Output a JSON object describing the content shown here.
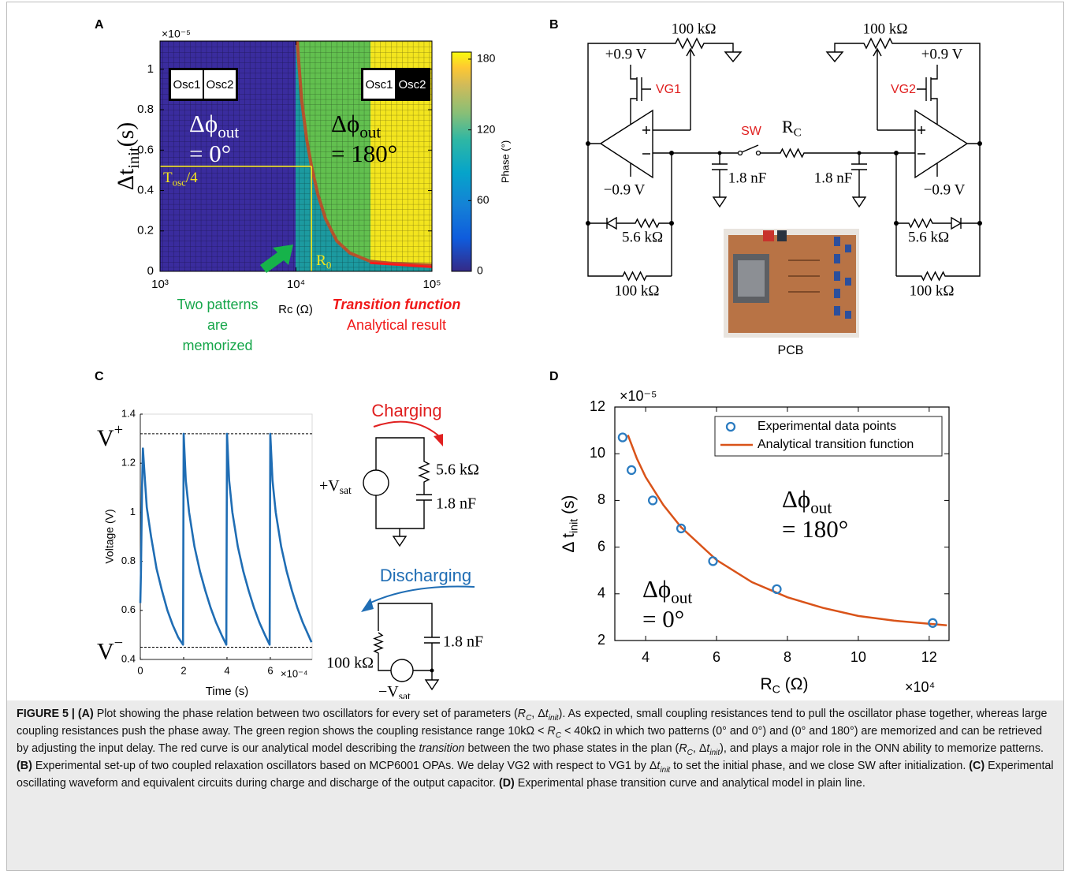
{
  "panel_labels": [
    "A",
    "B",
    "C",
    "D"
  ],
  "chart_data": [
    {
      "type": "heatmap",
      "x_label": "Rc (Ω)",
      "y_label": {
        "main": "Δt",
        "sub": "init",
        "tail": "(s)"
      },
      "y_multiplier": "×10⁻⁵",
      "xscale": "log",
      "xlim": [
        1000,
        100000
      ],
      "xticks": [
        {
          "value": 1000,
          "label": "10³"
        },
        {
          "value": 10000,
          "label": "10⁴"
        },
        {
          "value": 100000,
          "label": "10⁵"
        }
      ],
      "ylim": [
        0,
        1.14
      ],
      "yticks": [
        0,
        0.2,
        0.4,
        0.6,
        0.8,
        1
      ],
      "clim": [
        0,
        186
      ],
      "cticks": [
        0,
        60,
        120,
        180
      ],
      "colorbar_label": "Phase (°)",
      "x": [
        10200,
        11000,
        12000,
        13000,
        14500,
        16500,
        20000,
        25000,
        35000,
        50000,
        100000
      ],
      "series": [
        {
          "color": "#b4532c",
          "values": [
            1.14,
            0.85,
            0.65,
            0.52,
            0.38,
            0.26,
            0.15,
            0.09,
            0.05,
            0.04,
            0.03
          ]
        }
      ],
      "osc_left": [
        "Osc1",
        "Osc2"
      ],
      "osc_right": [
        "Osc1",
        "Osc2"
      ],
      "phase_left": {
        "main": "Δϕ",
        "sub": "out",
        "line2": "= 0°"
      },
      "phase_right": {
        "main": "Δϕ",
        "sub": "out",
        "line2": "= 180°"
      },
      "t_osc": {
        "main": "T",
        "sub": "osc",
        "tail": "/4",
        "y": 0.52
      },
      "r0": {
        "main": "R",
        "sub": "0",
        "x": 13000
      },
      "memorized": [
        "Two patterns",
        "are",
        "memorized"
      ],
      "transition": [
        "Transition function",
        "Analytical result"
      ]
    },
    {
      "type": "line",
      "x_label": "Time (s)",
      "y_label": "Voltage (V)",
      "x_multiplier": "×10⁻⁴",
      "xlim": [
        0,
        7.93
      ],
      "xticks": [
        0,
        2,
        4,
        6
      ],
      "ylim": [
        0.4,
        1.4
      ],
      "yticks": [
        0.4,
        0.6,
        0.8,
        1,
        1.2,
        1.4
      ],
      "x": [
        0,
        0.03,
        0.08,
        0.12,
        0.2,
        0.3,
        0.5,
        0.75,
        1.0,
        1.25,
        1.5,
        1.75,
        1.97,
        2.0,
        2.1,
        2.25,
        2.5,
        2.75,
        3.0,
        3.25,
        3.5,
        3.75,
        3.97,
        4.0,
        4.1,
        4.25,
        4.5,
        4.75,
        5.0,
        5.25,
        5.5,
        5.75,
        5.97,
        6.0,
        6.1,
        6.25,
        6.5,
        6.75,
        7.0,
        7.25,
        7.5,
        7.75,
        7.9
      ],
      "series": [
        {
          "color": "#1f6db4",
          "values": [
            0.63,
            0.75,
            1.1,
            1.26,
            1.15,
            1.02,
            0.9,
            0.77,
            0.68,
            0.6,
            0.54,
            0.49,
            0.46,
            1.32,
            1.13,
            1.0,
            0.86,
            0.76,
            0.68,
            0.61,
            0.55,
            0.5,
            0.46,
            1.32,
            1.13,
            1.0,
            0.86,
            0.76,
            0.68,
            0.61,
            0.55,
            0.5,
            0.46,
            1.32,
            1.13,
            1.0,
            0.86,
            0.76,
            0.68,
            0.61,
            0.55,
            0.5,
            0.47
          ]
        }
      ],
      "hlines": [
        {
          "main": "V",
          "sup": "+",
          "y": 1.32
        },
        {
          "main": "V",
          "sup": "−",
          "y": 0.45
        }
      ],
      "charging": {
        "title": "Charging",
        "source": {
          "main": "+V",
          "sub": "sat"
        },
        "r": "5.6 kΩ",
        "c": "1.8 nF"
      },
      "discharging": {
        "title": "Discharging",
        "source": {
          "main": "−V",
          "sub": "sat"
        },
        "r": "100 kΩ",
        "c": "1.8 nF"
      }
    },
    {
      "type": "scatter",
      "x_label": {
        "main": "R",
        "sub": "C",
        "tail": " (Ω)"
      },
      "y_label": {
        "main": "Δ t",
        "sub": "init",
        "tail": " (s)"
      },
      "x_multiplier": "×10⁴",
      "y_multiplier": "×10⁻⁵",
      "xlim": [
        3.13,
        12.56
      ],
      "xticks": [
        4,
        6,
        8,
        10,
        12
      ],
      "ylim": [
        2,
        12
      ],
      "yticks": [
        2,
        4,
        6,
        8,
        10,
        12
      ],
      "legend": "upper right",
      "series": [
        {
          "name": "Experimental data points",
          "type": "scatter",
          "color": "#2a7bc0",
          "x": [
            3.35,
            3.6,
            4.2,
            5.0,
            5.9,
            7.7,
            12.1
          ],
          "values": [
            10.7,
            9.3,
            8.0,
            6.8,
            5.4,
            4.2,
            2.75
          ]
        },
        {
          "name": "Analytical transition function",
          "type": "line",
          "color": "#d95319",
          "x": [
            3.5,
            3.75,
            4,
            4.5,
            5,
            6,
            7,
            8,
            9,
            10,
            11,
            12.5
          ],
          "values": [
            10.8,
            9.8,
            9.0,
            7.8,
            6.85,
            5.45,
            4.5,
            3.85,
            3.4,
            3.05,
            2.85,
            2.65
          ]
        }
      ],
      "annotations": [
        {
          "main": "Δϕ",
          "sub": "out",
          "line2": "= 180°"
        },
        {
          "main": "Δϕ",
          "sub": "out",
          "line2": "= 0°"
        }
      ]
    }
  ],
  "circuit": {
    "pot_left": "100 kΩ",
    "pot_right": "100 kΩ",
    "vdd_left": "+0.9 V",
    "vdd_right": "+0.9 V",
    "gate_left": "VG1",
    "gate_right": "VG2",
    "switch": "SW",
    "rc": {
      "main": "R",
      "sub": "C"
    },
    "cap_left": "1.8 nF",
    "cap_right": "1.8 nF",
    "vss_left": "−0.9 V",
    "vss_right": "−0.9 V",
    "diode_r_left": "5.6 kΩ",
    "diode_r_right": "5.6 kΩ",
    "fb_left": "100 kΩ",
    "fb_right": "100 kΩ",
    "photo": "PCB"
  },
  "caption": [
    {
      "text": "FIGURE 5 | (A)",
      "style": "bold"
    },
    {
      "text": " Plot showing the phase relation between two oscillators for every set of parameters ("
    },
    {
      "text": "R",
      "style": "italic"
    },
    {
      "text": "C",
      "style": "italic-sub"
    },
    {
      "text": ", Δ"
    },
    {
      "text": "t",
      "style": "italic"
    },
    {
      "text": "init",
      "style": "italic-sub"
    },
    {
      "text": "). As expected, small coupling resistances tend to pull the oscillator phase together, whereas large coupling resistances push the phase away. The green region shows the coupling resistance range 10kΩ < "
    },
    {
      "text": "R",
      "style": "italic"
    },
    {
      "text": "C",
      "style": "italic-sub"
    },
    {
      "text": " < 40kΩ in which two patterns (0° and 0°) and (0° and 180°) are memorized and can be retrieved by adjusting the input delay. The red curve is our analytical model describing the "
    },
    {
      "text": "transition",
      "style": "italic"
    },
    {
      "text": " between the two phase states in the plan ("
    },
    {
      "text": "R",
      "style": "italic"
    },
    {
      "text": "C",
      "style": "italic-sub"
    },
    {
      "text": ", Δ"
    },
    {
      "text": "t",
      "style": "italic"
    },
    {
      "text": "init",
      "style": "italic-sub"
    },
    {
      "text": "), and plays a major role in the ONN ability to memorize patterns. "
    },
    {
      "text": "(B)",
      "style": "bold"
    },
    {
      "text": " Experimental set-up of two coupled relaxation oscillators based on MCP6001 OPAs. We delay VG2 with respect to VG1 by Δ"
    },
    {
      "text": "t",
      "style": "italic"
    },
    {
      "text": "init",
      "style": "italic-sub"
    },
    {
      "text": " to set the initial phase, and we close SW after initialization. "
    },
    {
      "text": "(C)",
      "style": "bold"
    },
    {
      "text": " Experimental oscillating waveform and equivalent circuits during charge and discharge of the output capacitor. "
    },
    {
      "text": "(D)",
      "style": "bold"
    },
    {
      "text": " Experimental phase transition curve and analytical model in plain line."
    }
  ]
}
